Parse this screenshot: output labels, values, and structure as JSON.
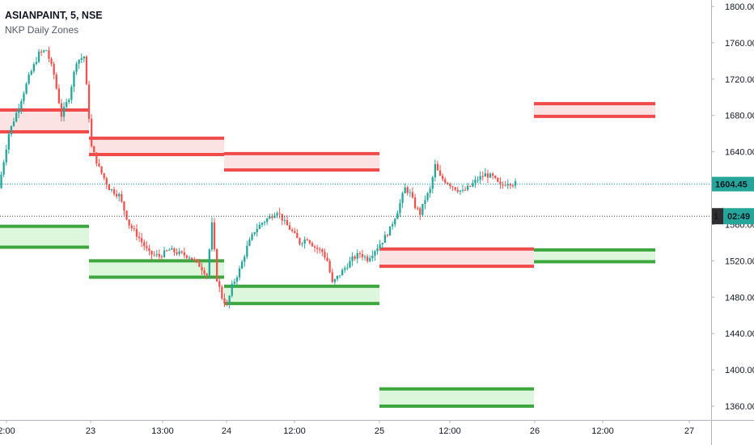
{
  "chart_data": {
    "type": "candlestick",
    "title": "ASIANPAINT, 5, NSE",
    "indicator": "NKP Daily Zones",
    "ylim": [
      1320,
      1820
    ],
    "y_ticks": [
      "1800.00",
      "1760.00",
      "1720.00",
      "1680.00",
      "1640.00",
      "1600.00",
      "1560.00",
      "1520.00",
      "1480.00",
      "1440.00",
      "1400.00",
      "1360.00"
    ],
    "x_ticks": [
      "2:00",
      "23",
      "13:00",
      "24",
      "12:00",
      "25",
      "12:00",
      "26",
      "12:00",
      "27"
    ],
    "price_label": "1604.45",
    "countdown_label": "02:49",
    "countdown_prefix": "1",
    "last_price": 1604.45,
    "crosshair_price": 1570,
    "zones": [
      {
        "day": "22",
        "supply": [
          1662,
          1686
        ],
        "demand": [
          1535,
          1558
        ]
      },
      {
        "day": "23",
        "supply": [
          1637,
          1655
        ],
        "demand": [
          1502,
          1520
        ]
      },
      {
        "day": "24",
        "supply": [
          1620,
          1638
        ],
        "demand": [
          1473,
          1492
        ]
      },
      {
        "day": "25",
        "supply": [
          1514,
          1533
        ],
        "demand": [
          1360,
          1379
        ]
      },
      {
        "day": "26",
        "supply": [
          1679,
          1693
        ],
        "demand": [
          1519,
          1532
        ]
      }
    ],
    "price_path": [
      [
        0,
        1600
      ],
      [
        4,
        1660
      ],
      [
        8,
        1690
      ],
      [
        12,
        1722
      ],
      [
        16,
        1748
      ],
      [
        19,
        1752
      ],
      [
        22,
        1725
      ],
      [
        25,
        1680
      ],
      [
        28,
        1700
      ],
      [
        31,
        1740
      ],
      [
        34,
        1745
      ],
      [
        37,
        1645
      ],
      [
        40,
        1622
      ],
      [
        44,
        1600
      ],
      [
        48,
        1592
      ],
      [
        52,
        1560
      ],
      [
        56,
        1545
      ],
      [
        60,
        1528
      ],
      [
        64,
        1525
      ],
      [
        68,
        1532
      ],
      [
        72,
        1528
      ],
      [
        76,
        1525
      ],
      [
        80,
        1515
      ],
      [
        83,
        1505
      ],
      [
        85,
        1560
      ],
      [
        87,
        1500
      ],
      [
        89,
        1480
      ],
      [
        91,
        1470
      ],
      [
        93,
        1492
      ],
      [
        96,
        1510
      ],
      [
        99,
        1535
      ],
      [
        102,
        1553
      ],
      [
        105,
        1562
      ],
      [
        108,
        1568
      ],
      [
        111,
        1575
      ],
      [
        114,
        1562
      ],
      [
        117,
        1552
      ],
      [
        120,
        1540
      ],
      [
        123,
        1545
      ],
      [
        126,
        1535
      ],
      [
        129,
        1530
      ],
      [
        131,
        1520
      ],
      [
        133,
        1495
      ],
      [
        135,
        1502
      ],
      [
        138,
        1512
      ],
      [
        141,
        1522
      ],
      [
        144,
        1528
      ],
      [
        147,
        1522
      ],
      [
        150,
        1532
      ],
      [
        153,
        1542
      ],
      [
        156,
        1555
      ],
      [
        159,
        1575
      ],
      [
        162,
        1600
      ],
      [
        164,
        1594
      ],
      [
        166,
        1580
      ],
      [
        168,
        1572
      ],
      [
        170,
        1588
      ],
      [
        172,
        1598
      ],
      [
        174,
        1625
      ],
      [
        176,
        1612
      ],
      [
        179,
        1606
      ],
      [
        182,
        1600
      ],
      [
        185,
        1596
      ],
      [
        188,
        1602
      ],
      [
        191,
        1610
      ],
      [
        194,
        1615
      ],
      [
        197,
        1612
      ],
      [
        200,
        1602
      ],
      [
        203,
        1607
      ],
      [
        205,
        1605
      ]
    ]
  }
}
